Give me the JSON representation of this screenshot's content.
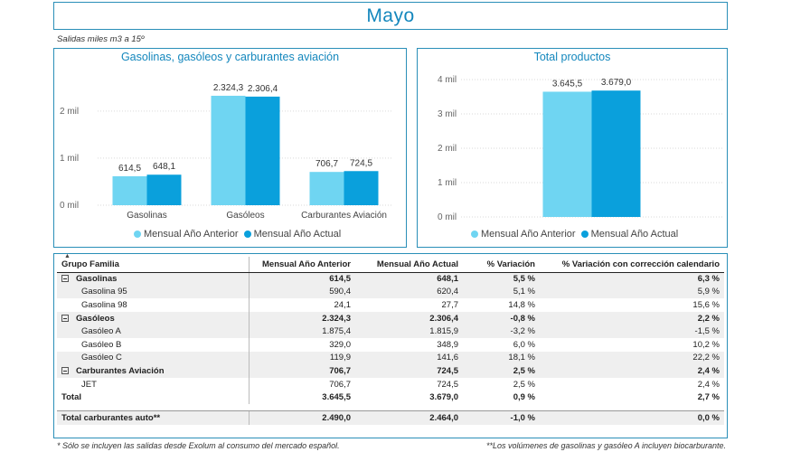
{
  "header": {
    "title": "Mayo",
    "subtitle": "Salidas miles m3 a 15º"
  },
  "colors": {
    "anterior": "#6fd5f2",
    "actual": "#0aa0dc",
    "accent": "#1487bd"
  },
  "legend": {
    "anterior": "Mensual Año Anterior",
    "actual": "Mensual Año Actual"
  },
  "chart_data": [
    {
      "type": "bar",
      "title": "Gasolinas, gasóleos y carburantes aviación",
      "categories": [
        "Gasolinas",
        "Gasóleos",
        "Carburantes Aviación"
      ],
      "series": [
        {
          "name": "Mensual Año Anterior",
          "values": [
            614.5,
            2324.3,
            706.7
          ],
          "labels": [
            "614,5",
            "2.324,3",
            "706,7"
          ]
        },
        {
          "name": "Mensual Año Actual",
          "values": [
            648.1,
            2306.4,
            724.5
          ],
          "labels": [
            "648,1",
            "2.306,4",
            "724,5"
          ]
        }
      ],
      "yticks": [
        0,
        1000,
        2000
      ],
      "ytick_labels": [
        "0 mil",
        "1 mil",
        "2 mil"
      ],
      "ylim": [
        0,
        2400
      ],
      "legend": "bottom"
    },
    {
      "type": "bar",
      "title": "Total productos",
      "categories": [
        ""
      ],
      "series": [
        {
          "name": "Mensual Año Anterior",
          "values": [
            3645.5
          ],
          "labels": [
            "3.645,5"
          ]
        },
        {
          "name": "Mensual Año Actual",
          "values": [
            3679.0
          ],
          "labels": [
            "3.679,0"
          ]
        }
      ],
      "yticks": [
        0,
        1000,
        2000,
        3000,
        4000
      ],
      "ytick_labels": [
        "0 mil",
        "1 mil",
        "2 mil",
        "3 mil",
        "4 mil"
      ],
      "ylim": [
        0,
        4000
      ],
      "legend": "bottom"
    }
  ],
  "table": {
    "headers": [
      "Grupo Familia",
      "Mensual Año Anterior",
      "Mensual Año Actual",
      "% Variación",
      "% Variación con corrección calendario"
    ],
    "rows": [
      {
        "kind": "group",
        "cells": [
          "Gasolinas",
          "614,5",
          "648,1",
          "5,5 %",
          "6,3 %"
        ]
      },
      {
        "kind": "child",
        "cells": [
          "Gasolina 95",
          "590,4",
          "620,4",
          "5,1 %",
          "5,9 %"
        ]
      },
      {
        "kind": "child",
        "cells": [
          "Gasolina 98",
          "24,1",
          "27,7",
          "14,8 %",
          "15,6 %"
        ]
      },
      {
        "kind": "group",
        "cells": [
          "Gasóleos",
          "2.324,3",
          "2.306,4",
          "-0,8 %",
          "2,2 %"
        ]
      },
      {
        "kind": "child",
        "cells": [
          "Gasóleo A",
          "1.875,4",
          "1.815,9",
          "-3,2 %",
          "-1,5 %"
        ]
      },
      {
        "kind": "child",
        "cells": [
          "Gasóleo B",
          "329,0",
          "348,9",
          "6,0 %",
          "10,2 %"
        ]
      },
      {
        "kind": "child",
        "cells": [
          "Gasóleo C",
          "119,9",
          "141,6",
          "18,1 %",
          "22,2 %"
        ]
      },
      {
        "kind": "group",
        "cells": [
          "Carburantes Aviación",
          "706,7",
          "724,5",
          "2,5 %",
          "2,4 %"
        ]
      },
      {
        "kind": "child",
        "cells": [
          "JET",
          "706,7",
          "724,5",
          "2,5 %",
          "2,4 %"
        ]
      },
      {
        "kind": "total",
        "cells": [
          "Total",
          "3.645,5",
          "3.679,0",
          "0,9 %",
          "2,7 %"
        ]
      }
    ],
    "auto_row": [
      "Total carburantes auto**",
      "2.490,0",
      "2.464,0",
      "-1,0 %",
      "0,0 %"
    ]
  },
  "footnotes": {
    "left": "* Sólo se incluyen las salidas desde Exolum al consumo del mercado español.",
    "right": "**Los volúmenes de gasolinas y gasóleo A incluyen biocarburante."
  }
}
